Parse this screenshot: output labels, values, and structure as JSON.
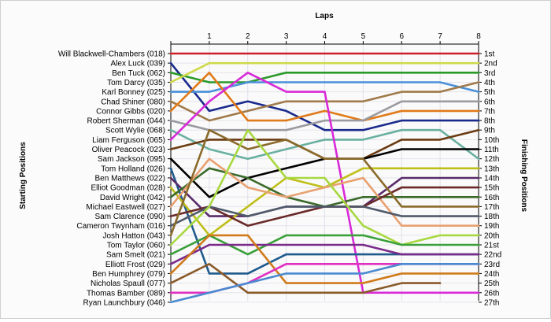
{
  "chart_data": {
    "type": "line",
    "title": "",
    "xlabel": "Laps",
    "ylabel_left": "Starting Positions",
    "ylabel_right": "Finishing Positions",
    "laps": [
      1,
      2,
      3,
      4,
      5,
      6,
      7,
      8
    ],
    "xlim": [
      0,
      8
    ],
    "positions": [
      "1st",
      "2nd",
      "3rd",
      "4th",
      "5th",
      "6th",
      "7th",
      "8th",
      "9th",
      "10th",
      "11th",
      "12th",
      "13th",
      "14th",
      "15th",
      "16th",
      "17th",
      "18th",
      "19th",
      "20th",
      "21st",
      "22nd",
      "23rd",
      "24th",
      "25th",
      "26th",
      "27th"
    ],
    "grid": true,
    "series": [
      {
        "name": "Will Blackwell-Chambers (018)",
        "color": "#cc1f2a",
        "values": [
          1,
          1,
          1,
          1,
          1,
          1,
          1,
          1,
          1
        ]
      },
      {
        "name": "Alex Luck (039)",
        "color": "#1a2a8c",
        "values": [
          2,
          7,
          6,
          7,
          9,
          9,
          8,
          8,
          8
        ]
      },
      {
        "name": "Ben Tuck (062)",
        "color": "#2a9a2a",
        "values": [
          3,
          4,
          4,
          3,
          3,
          3,
          3,
          3,
          3
        ]
      },
      {
        "name": "Tom Darcy (035)",
        "color": "#cfd94a",
        "values": [
          4,
          2,
          2,
          2,
          2,
          2,
          2,
          2,
          2
        ]
      },
      {
        "name": "Karl Bonney (025)",
        "color": "#4a90d9",
        "values": [
          5,
          5,
          4,
          4,
          4,
          4,
          4,
          4,
          5
        ]
      },
      {
        "name": "Chad Shiner (080)",
        "color": "#a07a4a",
        "values": [
          6,
          8,
          7,
          6,
          6,
          6,
          5,
          5,
          4
        ]
      },
      {
        "name": "Connor Gibbs (020)",
        "color": "#e07a1a",
        "values": [
          7,
          3,
          8,
          8,
          7,
          8,
          7,
          7,
          7
        ]
      },
      {
        "name": "Robert Sherman (044)",
        "color": "#9a9aa0",
        "values": [
          8,
          9,
          9,
          9,
          8,
          8,
          6,
          6,
          6
        ]
      },
      {
        "name": "Scott Wylie (068)",
        "color": "#6ab0a0",
        "values": [
          9,
          11,
          12,
          11,
          10,
          10,
          9,
          9,
          12
        ]
      },
      {
        "name": "Liam Ferguson (065)",
        "color": "#d82ad8",
        "values": [
          10,
          6,
          3,
          5,
          5,
          26,
          26,
          26,
          26
        ]
      },
      {
        "name": "Oliver Peacock (023)",
        "color": "#6a3a10",
        "values": [
          11,
          10,
          10,
          10,
          12,
          12,
          10,
          10,
          9
        ]
      },
      {
        "name": "Sam Jackson (095)",
        "color": "#000000",
        "values": [
          12,
          16,
          14,
          13,
          12,
          12,
          11,
          11,
          11
        ]
      },
      {
        "name": "Tom Holland (026)",
        "color": "#1f5a8c",
        "values": [
          13,
          24,
          24,
          22,
          22,
          22,
          22,
          22,
          22
        ]
      },
      {
        "name": "Ben Matthews (022)",
        "color": "#5a2a6a",
        "values": [
          14,
          18,
          18,
          17,
          17,
          17,
          14,
          14,
          14
        ]
      },
      {
        "name": "Elliot Goodman (028)",
        "color": "#bfbf1a",
        "values": [
          15,
          20,
          17,
          14,
          15,
          13,
          13,
          13,
          13
        ]
      },
      {
        "name": "David Wright (042)",
        "color": "#3a6a2a",
        "values": [
          16,
          13,
          14,
          16,
          17,
          16,
          16,
          16,
          16
        ]
      },
      {
        "name": "Michael Eastwell (027)",
        "color": "#e8a070",
        "values": [
          17,
          12,
          15,
          16,
          15,
          14,
          19,
          19,
          19
        ]
      },
      {
        "name": "Sam Clarence (090)",
        "color": "#6a2a2a",
        "values": [
          18,
          17,
          19,
          18,
          17,
          17,
          15,
          15,
          15
        ]
      },
      {
        "name": "Cameron Twynham (016)",
        "color": "#505a6a",
        "values": [
          19,
          17,
          18,
          17,
          17,
          17,
          18,
          18,
          18
        ]
      },
      {
        "name": "Josh Hatton (043)",
        "color": "#8a6a2a",
        "values": [
          20,
          9,
          11,
          10,
          12,
          12,
          17,
          17,
          17
        ]
      },
      {
        "name": "Tom Taylor (060)",
        "color": "#a8d840",
        "values": [
          21,
          17,
          9,
          14,
          14,
          19,
          21,
          20,
          20
        ]
      },
      {
        "name": "Sam Smelt (021)",
        "color": "#3aa03a",
        "values": [
          22,
          20,
          22,
          20,
          20,
          20,
          21,
          21,
          21
        ]
      },
      {
        "name": "Elliott Frost (029)",
        "color": "#7a2a8a",
        "values": [
          23,
          21,
          21,
          21,
          21,
          21,
          22,
          22,
          22
        ]
      },
      {
        "name": "Ben Humphrey (079)",
        "color": "#d07a1a",
        "values": [
          24,
          20,
          20,
          25,
          25,
          25,
          24,
          24,
          24
        ]
      },
      {
        "name": "Nicholas Spaull (077)",
        "color": "#8a5a2a",
        "values": [
          25,
          23,
          26,
          26,
          26,
          26,
          25,
          25,
          null
        ]
      },
      {
        "name": "Thomas Bamber (089)",
        "color": "#e030c0",
        "values": [
          26,
          26,
          25,
          23,
          23,
          23,
          23,
          23,
          23
        ]
      },
      {
        "name": "Ryan Launchbury (046)",
        "color": "#4a8ad0",
        "values": [
          27,
          26,
          25,
          24,
          24,
          24,
          23,
          23,
          23
        ]
      }
    ]
  }
}
